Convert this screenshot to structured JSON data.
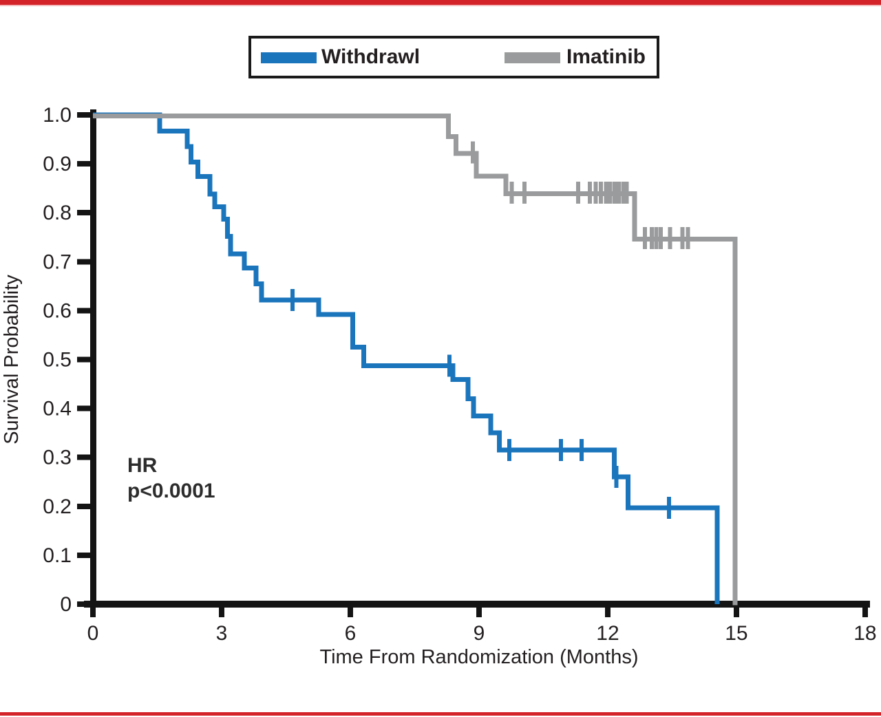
{
  "page": {
    "background": "#FFFFFF",
    "top_bar_color": "#D42329",
    "top_bar_accent_color": "#F3BDC0",
    "bottom_bar_color": "#D42329",
    "axis_color": "#141414",
    "text_color": "#231F20"
  },
  "legend": {
    "items": [
      {
        "label": "Withdrawl",
        "color": "#1B75BC"
      },
      {
        "label": "Imatinib",
        "color": "#9A9B9C"
      }
    ]
  },
  "annotation": {
    "line1": "HR",
    "line2": "p<0.0001"
  },
  "chart_data": {
    "type": "line",
    "subtype": "kaplan-meier-step",
    "title": "",
    "xlabel": "Time From Randomization (Months)",
    "ylabel": "Survival Probability",
    "xlim": [
      0,
      18
    ],
    "ylim": [
      0,
      1.0
    ],
    "grid": false,
    "legend_position": "top-center",
    "x_ticks": [
      {
        "v": 0,
        "label": "0"
      },
      {
        "v": 3,
        "label": "3"
      },
      {
        "v": 6,
        "label": "6"
      },
      {
        "v": 9,
        "label": "9"
      },
      {
        "v": 12,
        "label": "12"
      },
      {
        "v": 15,
        "label": "15"
      },
      {
        "v": 18,
        "label": "18"
      }
    ],
    "y_ticks": [
      {
        "v": 0,
        "label": "0"
      },
      {
        "v": 0.1,
        "label": "0.1"
      },
      {
        "v": 0.2,
        "label": "0.2"
      },
      {
        "v": 0.3,
        "label": "0.3"
      },
      {
        "v": 0.4,
        "label": "0.4"
      },
      {
        "v": 0.5,
        "label": "0.5"
      },
      {
        "v": 0.6,
        "label": "0.6"
      },
      {
        "v": 0.7,
        "label": "0.7"
      },
      {
        "v": 0.8,
        "label": "0.8"
      },
      {
        "v": 0.9,
        "label": "0.9"
      },
      {
        "v": 1.0,
        "label": "1.0"
      }
    ],
    "series": [
      {
        "name": "Withdrawl",
        "color": "#1B75BC",
        "steps": [
          [
            0,
            1.0
          ],
          [
            1.56,
            0.967
          ],
          [
            2.2,
            0.935
          ],
          [
            2.29,
            0.904
          ],
          [
            2.45,
            0.874
          ],
          [
            2.73,
            0.838
          ],
          [
            2.84,
            0.812
          ],
          [
            3.05,
            0.787
          ],
          [
            3.14,
            0.752
          ],
          [
            3.21,
            0.716
          ],
          [
            3.53,
            0.687
          ],
          [
            3.8,
            0.655
          ],
          [
            3.93,
            0.622
          ],
          [
            5.26,
            0.592
          ],
          [
            6.06,
            0.525
          ],
          [
            6.31,
            0.487
          ],
          [
            8.39,
            0.459
          ],
          [
            8.74,
            0.42
          ],
          [
            8.87,
            0.385
          ],
          [
            9.27,
            0.35
          ],
          [
            9.47,
            0.315
          ],
          [
            12.15,
            0.26
          ],
          [
            12.47,
            0.197
          ],
          [
            14.55,
            0
          ]
        ],
        "censors": [
          [
            4.65,
            0.622
          ],
          [
            8.31,
            0.487
          ],
          [
            9.71,
            0.315
          ],
          [
            10.91,
            0.315
          ],
          [
            11.39,
            0.315
          ],
          [
            12.2,
            0.26
          ],
          [
            13.43,
            0.197
          ]
        ]
      },
      {
        "name": "Imatinib",
        "color": "#9A9B9C",
        "steps": [
          [
            0,
            1.0
          ],
          [
            8.29,
            0.958
          ],
          [
            8.46,
            0.923
          ],
          [
            8.94,
            0.877
          ],
          [
            9.63,
            0.841
          ],
          [
            12.63,
            0.748
          ],
          [
            14.97,
            0
          ]
        ],
        "censors": [
          [
            8.86,
            0.923
          ],
          [
            9.76,
            0.841
          ],
          [
            10.06,
            0.841
          ],
          [
            11.31,
            0.841
          ],
          [
            11.58,
            0.841
          ],
          [
            11.72,
            0.841
          ],
          [
            11.84,
            0.841
          ],
          [
            11.96,
            0.841
          ],
          [
            12.06,
            0.841
          ],
          [
            12.16,
            0.841
          ],
          [
            12.26,
            0.841
          ],
          [
            12.36,
            0.841
          ],
          [
            12.44,
            0.841
          ],
          [
            12.87,
            0.748
          ],
          [
            13.03,
            0.748
          ],
          [
            13.13,
            0.748
          ],
          [
            13.24,
            0.748
          ],
          [
            13.45,
            0.748
          ],
          [
            13.74,
            0.748
          ],
          [
            13.87,
            0.748
          ]
        ]
      }
    ]
  }
}
